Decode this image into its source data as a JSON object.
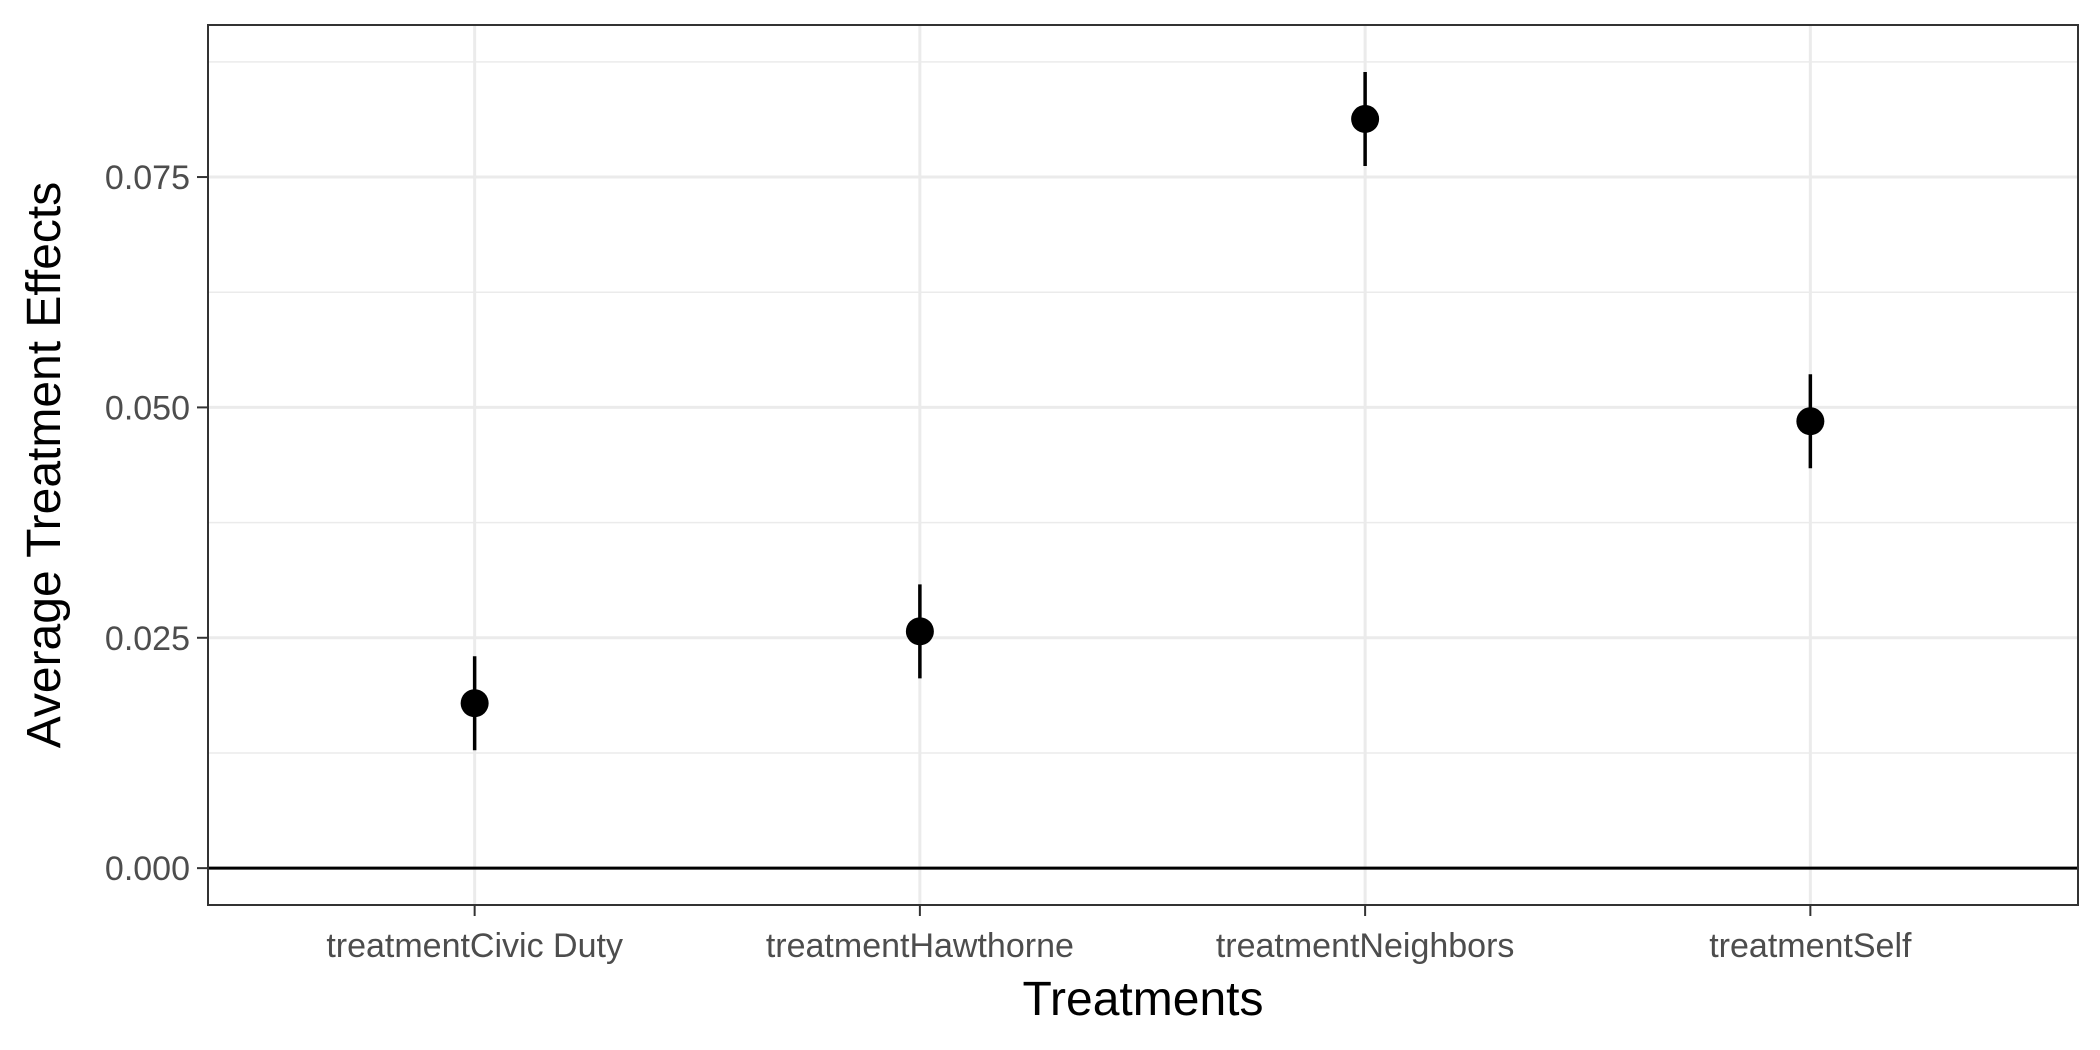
{
  "chart_data": {
    "type": "scatter",
    "title": "",
    "xlabel": "Treatments",
    "ylabel": "Average Treatment Effects",
    "categories": [
      "treatmentCivic Duty",
      "treatmentHawthorne",
      "treatmentNeighbors",
      "treatmentSelf"
    ],
    "series": [
      {
        "values": [
          0.0179,
          0.0257,
          0.0813,
          0.0485
        ],
        "ci_low": [
          0.0128,
          0.0206,
          0.0762,
          0.0434
        ],
        "ci_high": [
          0.023,
          0.0308,
          0.0864,
          0.0536
        ]
      }
    ],
    "ylim": [
      -0.004,
      0.0915
    ],
    "yticks": [
      0.0,
      0.025,
      0.05,
      0.075
    ],
    "ytick_labels": [
      "0.000",
      "0.025",
      "0.050",
      "0.075"
    ],
    "reference_line": 0,
    "grid": true,
    "legend": "none",
    "colors": {
      "point": "#000000",
      "errorbar": "#000000",
      "grid": "#ebebeb",
      "panel_border": "#333333",
      "reference_line": "#000000"
    }
  }
}
